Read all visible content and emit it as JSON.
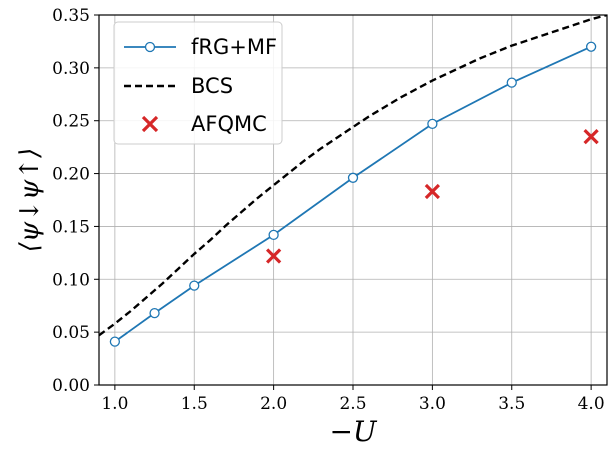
{
  "chart_data": {
    "type": "line",
    "xlabel": "−U",
    "ylabel": "⟨ψ↓ψ↑⟩",
    "xlim": [
      0.9,
      4.1
    ],
    "ylim": [
      0.0,
      0.35
    ],
    "x_ticks": [
      "1.0",
      "1.5",
      "2.0",
      "2.5",
      "3.0",
      "3.5",
      "4.0"
    ],
    "y_ticks": [
      "0.00",
      "0.05",
      "0.10",
      "0.15",
      "0.20",
      "0.25",
      "0.30",
      "0.35"
    ],
    "grid": true,
    "legend_position": "top-left",
    "series": [
      {
        "name": "fRG+MF",
        "style": "solid line with open circle markers",
        "color": "#1f77b4",
        "x": [
          1.0,
          1.25,
          1.5,
          2.0,
          2.5,
          3.0,
          3.5,
          4.0
        ],
        "y": [
          0.041,
          0.068,
          0.094,
          0.142,
          0.196,
          0.247,
          0.286,
          0.32
        ]
      },
      {
        "name": "BCS",
        "style": "dashed line",
        "color": "#000000",
        "x": [
          0.9,
          1.0,
          1.1,
          1.2,
          1.3,
          1.4,
          1.5,
          1.6,
          1.7,
          1.8,
          1.9,
          2.0,
          2.1,
          2.2,
          2.3,
          2.4,
          2.5,
          2.6,
          2.7,
          2.8,
          2.9,
          3.0,
          3.1,
          3.2,
          3.3,
          3.4,
          3.5,
          3.6,
          3.7,
          3.8,
          3.9,
          4.0,
          4.1
        ],
        "y": [
          0.047,
          0.058,
          0.07,
          0.083,
          0.096,
          0.11,
          0.124,
          0.137,
          0.151,
          0.164,
          0.177,
          0.189,
          0.201,
          0.213,
          0.224,
          0.234,
          0.244,
          0.254,
          0.263,
          0.272,
          0.28,
          0.288,
          0.295,
          0.302,
          0.309,
          0.315,
          0.321,
          0.326,
          0.331,
          0.336,
          0.341,
          0.346,
          0.35
        ]
      },
      {
        "name": "AFQMC",
        "style": "x markers",
        "color": "#d62728",
        "x": [
          2.0,
          3.0,
          4.0
        ],
        "y": [
          0.122,
          0.183,
          0.235
        ]
      }
    ]
  }
}
